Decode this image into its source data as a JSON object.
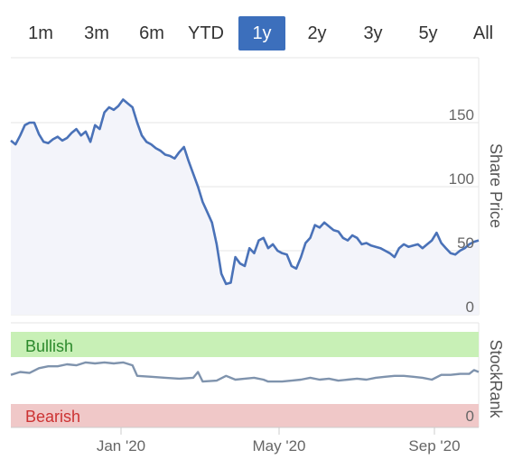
{
  "range_tabs": [
    {
      "label": "1m",
      "active": false
    },
    {
      "label": "3m",
      "active": false
    },
    {
      "label": "6m",
      "active": false
    },
    {
      "label": "YTD",
      "active": false
    },
    {
      "label": "1y",
      "active": true
    },
    {
      "label": "2y",
      "active": false
    },
    {
      "label": "3y",
      "active": false
    },
    {
      "label": "5y",
      "active": false
    },
    {
      "label": "All",
      "active": false
    }
  ],
  "colors": {
    "line": "#4a72b8",
    "price_fill": "#f3f4fa",
    "bullish_band": "#c8f0b6",
    "bearish_band": "#f0c8c8",
    "bullish_text": "#2c8a2c",
    "bearish_text": "#cc3333",
    "stockrank_line": "#7f93ad",
    "active_tab": "#3c6fbc"
  },
  "chart_data": [
    {
      "type": "area",
      "ylabel": "Share Price",
      "ylim": [
        0,
        180
      ],
      "y_ticks": [
        0,
        50,
        100,
        150
      ],
      "x_ticks": [
        "Jan '20",
        "May '20",
        "Sep '20"
      ],
      "points": [
        [
          0,
          136
        ],
        [
          0.01,
          133
        ],
        [
          0.02,
          140
        ],
        [
          0.03,
          148
        ],
        [
          0.04,
          150
        ],
        [
          0.05,
          150
        ],
        [
          0.06,
          141
        ],
        [
          0.07,
          135
        ],
        [
          0.08,
          134
        ],
        [
          0.09,
          137
        ],
        [
          0.1,
          139
        ],
        [
          0.11,
          136
        ],
        [
          0.12,
          138
        ],
        [
          0.13,
          142
        ],
        [
          0.14,
          145
        ],
        [
          0.15,
          140
        ],
        [
          0.16,
          143
        ],
        [
          0.17,
          135
        ],
        [
          0.18,
          148
        ],
        [
          0.19,
          145
        ],
        [
          0.2,
          158
        ],
        [
          0.21,
          162
        ],
        [
          0.22,
          160
        ],
        [
          0.23,
          163
        ],
        [
          0.24,
          168
        ],
        [
          0.25,
          165
        ],
        [
          0.26,
          162
        ],
        [
          0.27,
          150
        ],
        [
          0.28,
          140
        ],
        [
          0.29,
          135
        ],
        [
          0.3,
          133
        ],
        [
          0.31,
          130
        ],
        [
          0.32,
          128
        ],
        [
          0.33,
          125
        ],
        [
          0.34,
          124
        ],
        [
          0.35,
          122
        ],
        [
          0.36,
          127
        ],
        [
          0.37,
          131
        ],
        [
          0.38,
          120
        ],
        [
          0.39,
          110
        ],
        [
          0.4,
          100
        ],
        [
          0.41,
          88
        ],
        [
          0.42,
          80
        ],
        [
          0.43,
          72
        ],
        [
          0.44,
          55
        ],
        [
          0.45,
          32
        ],
        [
          0.46,
          24
        ],
        [
          0.47,
          25
        ],
        [
          0.48,
          45
        ],
        [
          0.49,
          40
        ],
        [
          0.5,
          38
        ],
        [
          0.51,
          52
        ],
        [
          0.52,
          48
        ],
        [
          0.53,
          58
        ],
        [
          0.54,
          60
        ],
        [
          0.55,
          52
        ],
        [
          0.56,
          55
        ],
        [
          0.57,
          50
        ],
        [
          0.58,
          48
        ],
        [
          0.59,
          47
        ],
        [
          0.6,
          38
        ],
        [
          0.61,
          36
        ],
        [
          0.62,
          45
        ],
        [
          0.63,
          56
        ],
        [
          0.64,
          60
        ],
        [
          0.65,
          70
        ],
        [
          0.66,
          68
        ],
        [
          0.67,
          72
        ],
        [
          0.68,
          69
        ],
        [
          0.69,
          66
        ],
        [
          0.7,
          65
        ],
        [
          0.71,
          60
        ],
        [
          0.72,
          58
        ],
        [
          0.73,
          62
        ],
        [
          0.74,
          60
        ],
        [
          0.75,
          55
        ],
        [
          0.76,
          56
        ],
        [
          0.77,
          54
        ],
        [
          0.78,
          53
        ],
        [
          0.79,
          52
        ],
        [
          0.8,
          50
        ],
        [
          0.81,
          48
        ],
        [
          0.82,
          45
        ],
        [
          0.83,
          52
        ],
        [
          0.84,
          55
        ],
        [
          0.85,
          53
        ],
        [
          0.86,
          54
        ],
        [
          0.87,
          55
        ],
        [
          0.88,
          52
        ],
        [
          0.89,
          55
        ],
        [
          0.9,
          58
        ],
        [
          0.91,
          64
        ],
        [
          0.92,
          56
        ],
        [
          0.93,
          52
        ],
        [
          0.94,
          48
        ],
        [
          0.95,
          47
        ],
        [
          0.96,
          50
        ],
        [
          0.97,
          52
        ],
        [
          0.98,
          55
        ],
        [
          0.99,
          57
        ],
        [
          1.0,
          58
        ]
      ]
    },
    {
      "type": "line",
      "ylabel": "StockRank",
      "bands": [
        {
          "label": "Bullish"
        },
        {
          "label": "Bearish"
        }
      ],
      "y_ticks": [
        0
      ],
      "ylim": [
        0,
        100
      ],
      "points": [
        [
          0,
          55
        ],
        [
          0.02,
          58
        ],
        [
          0.04,
          57
        ],
        [
          0.06,
          62
        ],
        [
          0.08,
          64
        ],
        [
          0.1,
          64
        ],
        [
          0.12,
          66
        ],
        [
          0.14,
          65
        ],
        [
          0.16,
          68
        ],
        [
          0.18,
          67
        ],
        [
          0.2,
          68
        ],
        [
          0.22,
          67
        ],
        [
          0.24,
          68
        ],
        [
          0.26,
          65
        ],
        [
          0.27,
          54
        ],
        [
          0.3,
          53
        ],
        [
          0.33,
          52
        ],
        [
          0.36,
          51
        ],
        [
          0.39,
          52
        ],
        [
          0.4,
          58
        ],
        [
          0.41,
          48
        ],
        [
          0.44,
          49
        ],
        [
          0.46,
          54
        ],
        [
          0.48,
          50
        ],
        [
          0.5,
          51
        ],
        [
          0.52,
          52
        ],
        [
          0.54,
          50
        ],
        [
          0.55,
          48
        ],
        [
          0.58,
          48
        ],
        [
          0.6,
          49
        ],
        [
          0.62,
          50
        ],
        [
          0.64,
          52
        ],
        [
          0.66,
          50
        ],
        [
          0.68,
          51
        ],
        [
          0.7,
          49
        ],
        [
          0.72,
          50
        ],
        [
          0.74,
          51
        ],
        [
          0.76,
          50
        ],
        [
          0.78,
          52
        ],
        [
          0.8,
          53
        ],
        [
          0.82,
          54
        ],
        [
          0.84,
          54
        ],
        [
          0.86,
          53
        ],
        [
          0.88,
          52
        ],
        [
          0.9,
          50
        ],
        [
          0.92,
          55
        ],
        [
          0.94,
          55
        ],
        [
          0.96,
          56
        ],
        [
          0.98,
          56
        ],
        [
          0.99,
          60
        ],
        [
          1.0,
          58
        ]
      ]
    }
  ]
}
